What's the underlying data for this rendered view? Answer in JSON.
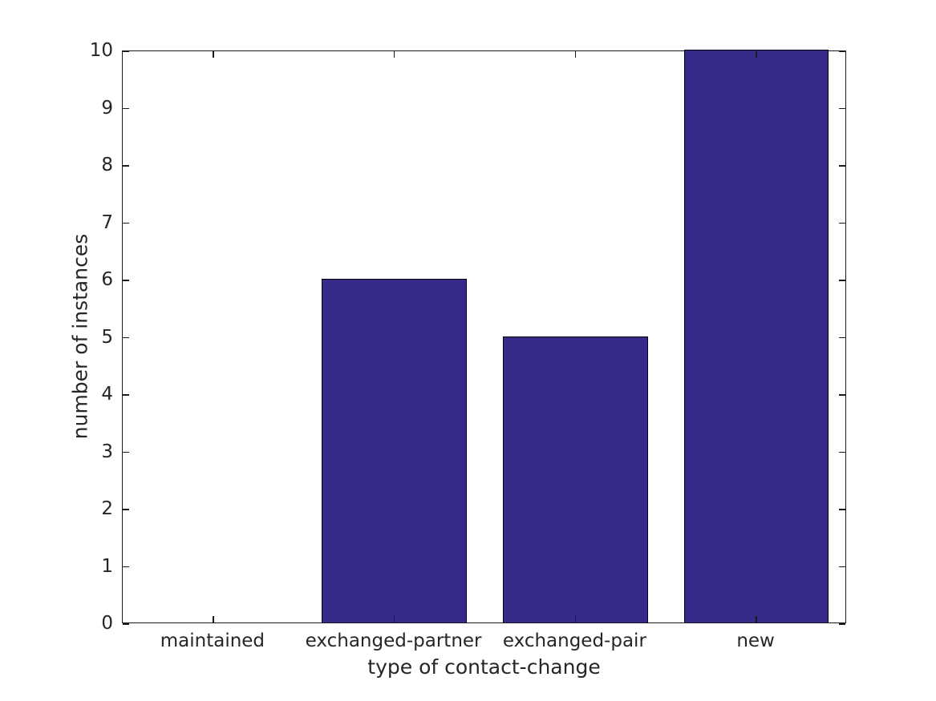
{
  "chart_data": {
    "type": "bar",
    "title": "",
    "categories": [
      "maintained",
      "exchanged-partner",
      "exchanged-pair",
      "new"
    ],
    "values": [
      0,
      6,
      5,
      10
    ],
    "xlabel": "type of contact-change",
    "ylabel": "number of instances",
    "ylim": [
      0,
      10
    ],
    "yticks": [
      0,
      1,
      2,
      3,
      4,
      5,
      6,
      7,
      8,
      9,
      10
    ],
    "bar_width_fraction": 0.8,
    "grid": false,
    "legend": null,
    "box": true,
    "tick_direction": "in",
    "colors": {
      "bar_fill": "#352A87",
      "bar_edge": "#000000",
      "axis": "#1a1a1a",
      "tick": "#1a1a1a",
      "text": "#262626",
      "background": "#ffffff"
    }
  }
}
